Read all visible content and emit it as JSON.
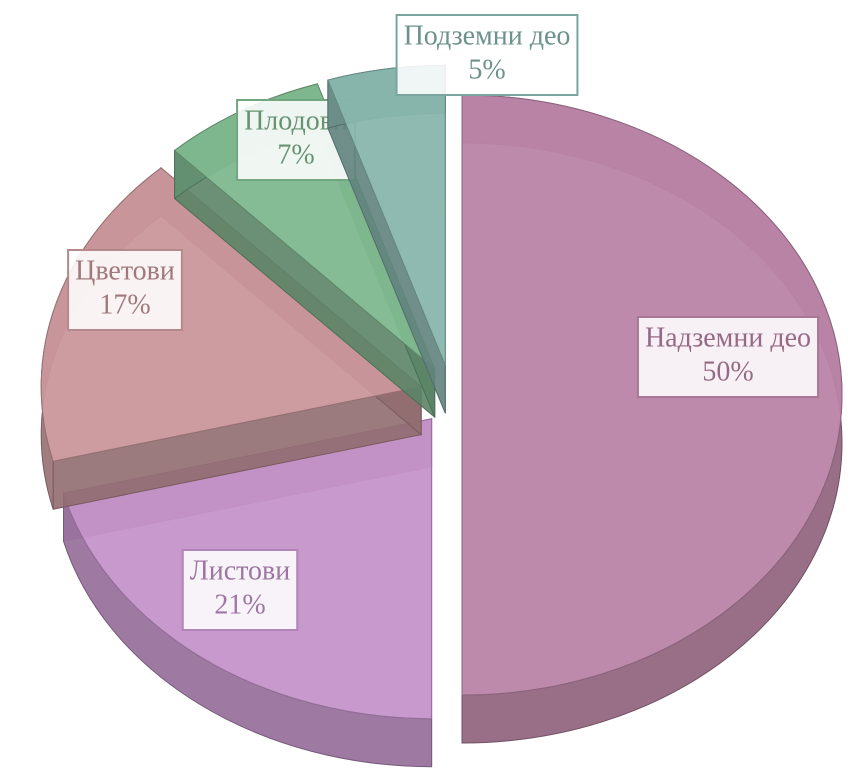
{
  "chart_data": {
    "type": "pie",
    "categories": [
      "Надземни део",
      "Листови",
      "Цветови",
      "Плодови",
      "Подземни део"
    ],
    "values": [
      50,
      21,
      17,
      7,
      5
    ],
    "value_labels": [
      "50%",
      "21%",
      "17%",
      "7%",
      "5%"
    ],
    "colors": [
      "#bb84a6",
      "#c494c9",
      "#c9979b",
      "#7fb88f",
      "#88b6ae"
    ]
  }
}
